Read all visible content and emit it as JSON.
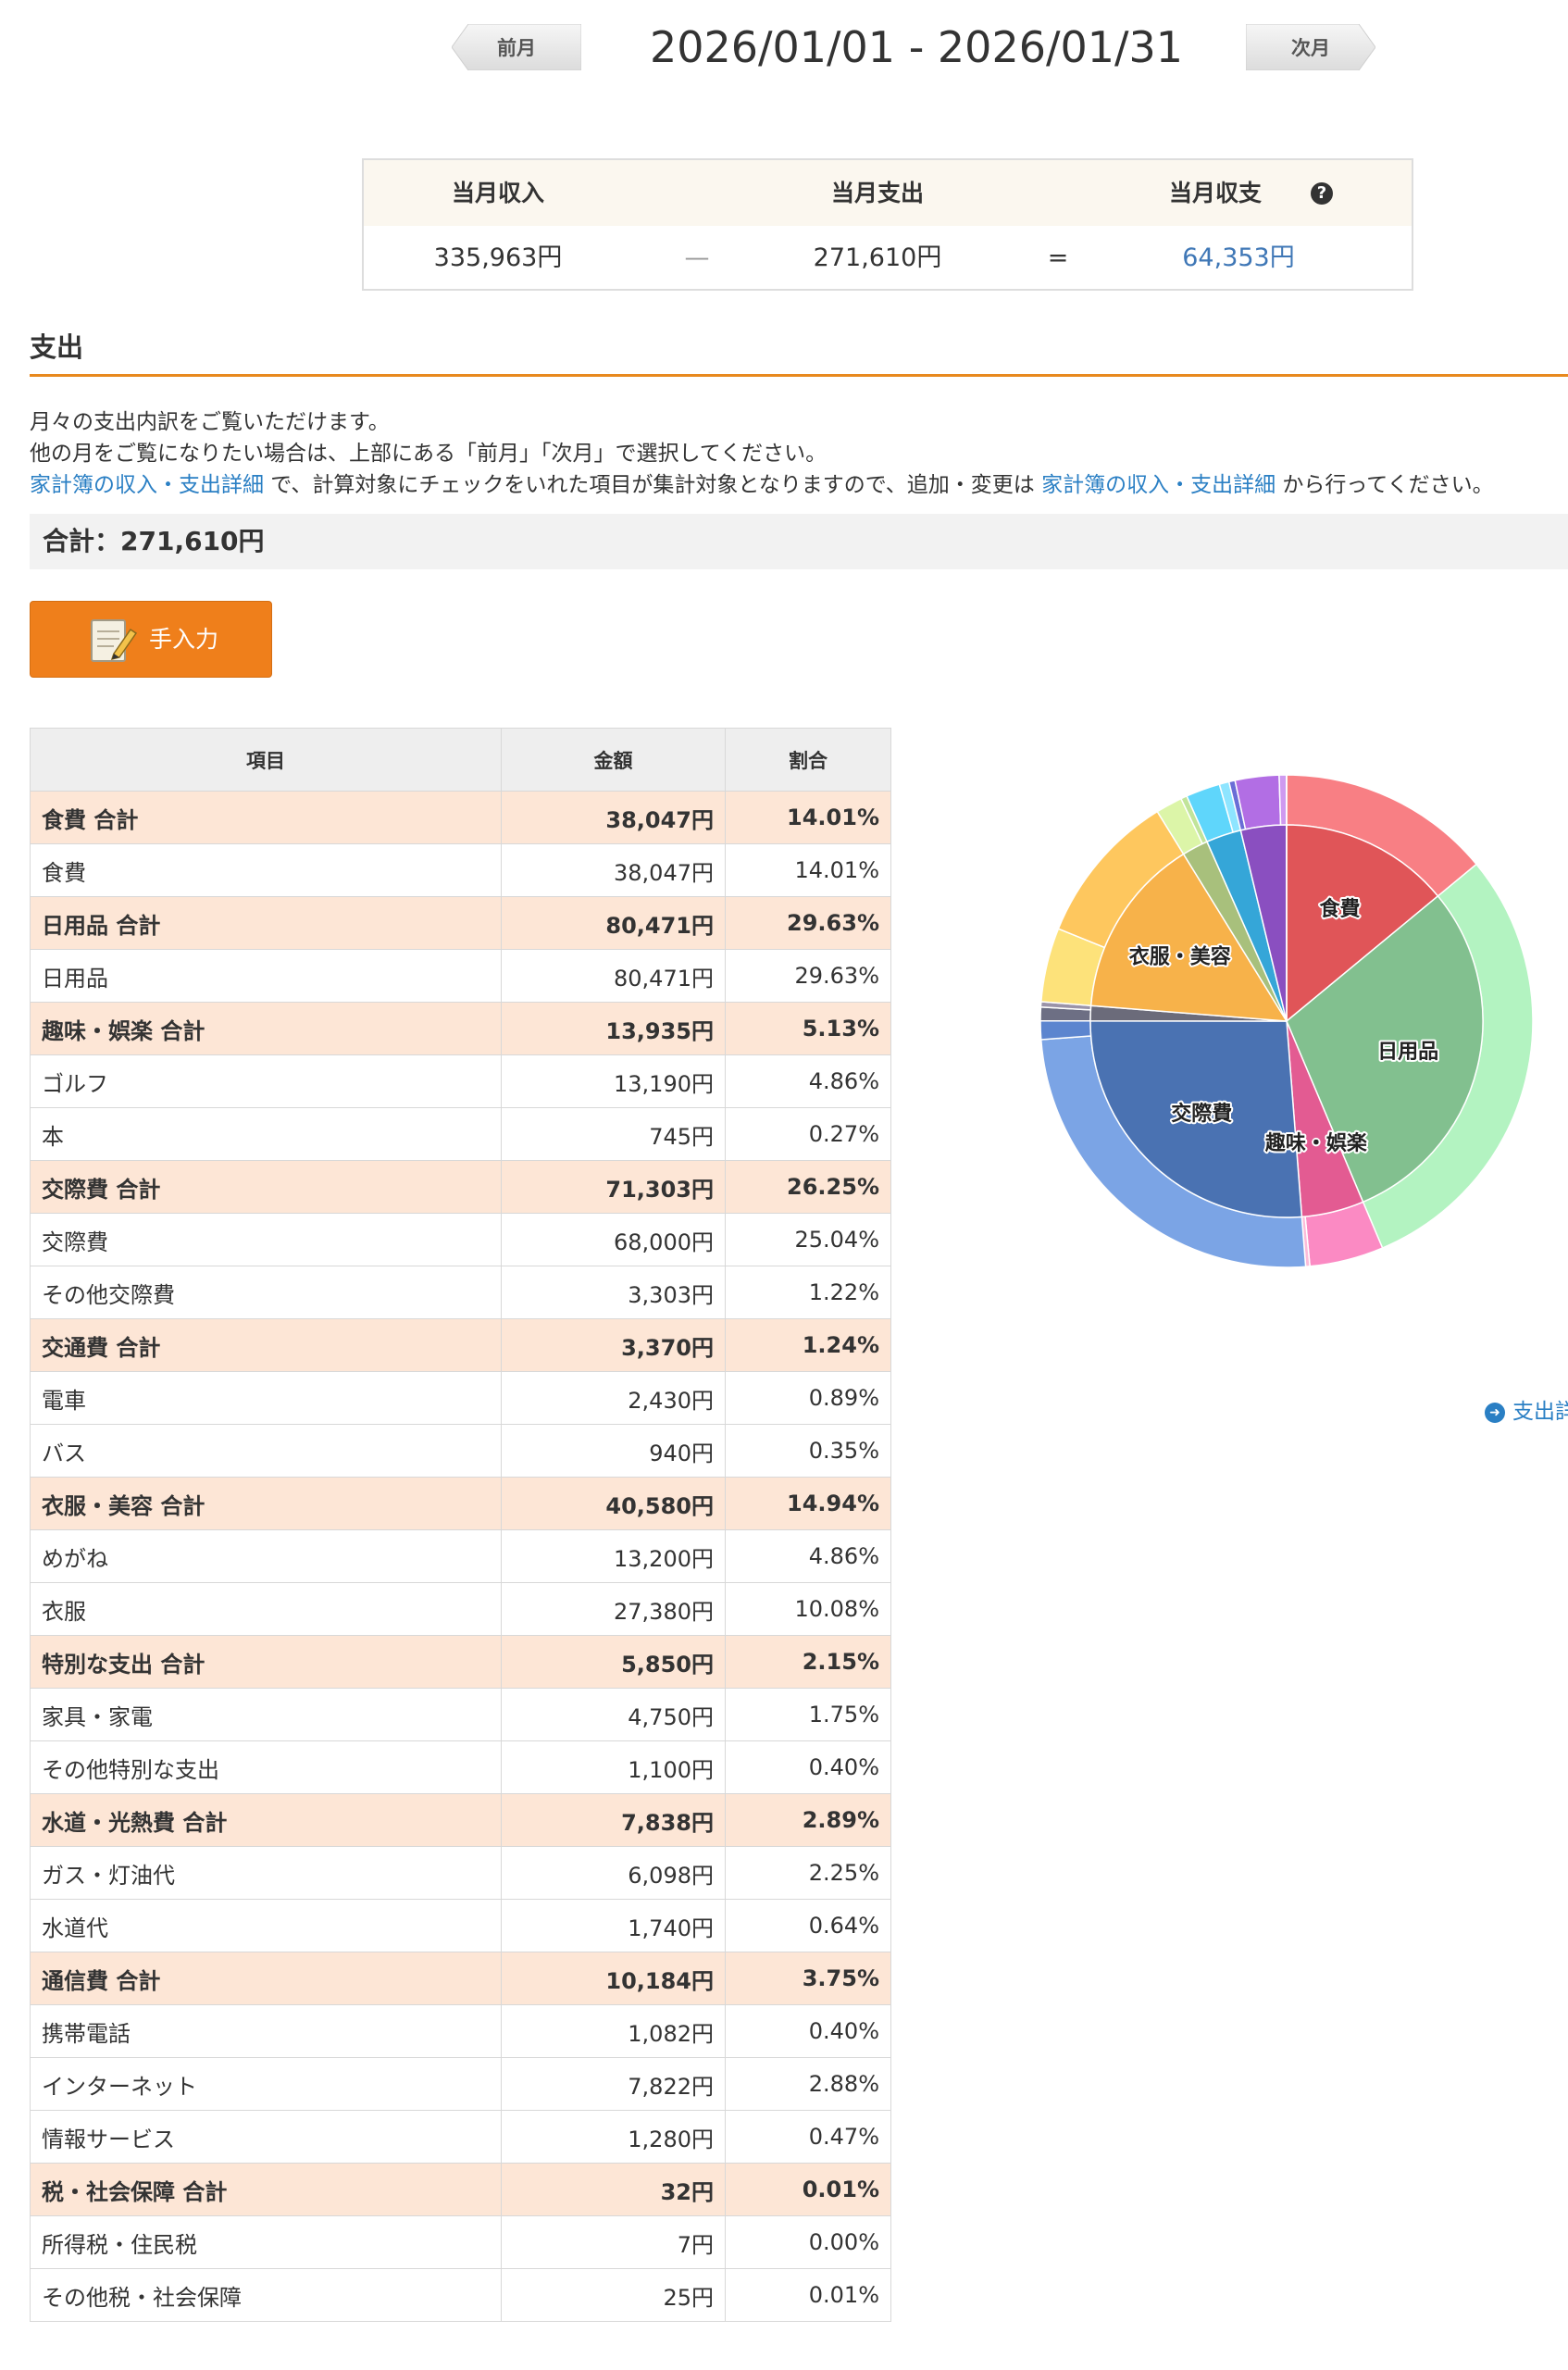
{
  "nav": {
    "prev_label": "前月",
    "next_label": "次月",
    "date_range": "2026/01/01 - 2026/01/31"
  },
  "summary": {
    "income_label": "当月収入",
    "expense_label": "当月支出",
    "balance_label": "当月収支",
    "income_value": "335,963円",
    "minus_sign": "—",
    "expense_value": "271,610円",
    "equals_sign": "=",
    "balance_value": "64,353円",
    "help_glyph": "?"
  },
  "section": {
    "title": "支出",
    "desc_line1": "月々の支出内訳をご覧いただけます。",
    "desc_line2": "他の月をご覧になりたい場合は、上部にある「前月」「次月」で選択してください。",
    "desc_link1": "家計簿の収入・支出詳細",
    "desc_mid": " で、計算対象にチェックをいれた項目が集計対象となりますので、追加・変更は ",
    "desc_link2": "家計簿の収入・支出詳細",
    "desc_end": " から行ってください。",
    "total": "合計：271,610円",
    "manual_button": "手入力",
    "detail_link": "支出詳"
  },
  "table": {
    "headers": [
      "項目",
      "金額",
      "割合"
    ],
    "rows": [
      {
        "name": "食費 合計",
        "amount": "38,047円",
        "pct": "14.01%",
        "group": true
      },
      {
        "name": "食費",
        "amount": "38,047円",
        "pct": "14.01%",
        "group": false
      },
      {
        "name": "日用品 合計",
        "amount": "80,471円",
        "pct": "29.63%",
        "group": true
      },
      {
        "name": "日用品",
        "amount": "80,471円",
        "pct": "29.63%",
        "group": false
      },
      {
        "name": "趣味・娯楽 合計",
        "amount": "13,935円",
        "pct": "5.13%",
        "group": true
      },
      {
        "name": "ゴルフ",
        "amount": "13,190円",
        "pct": "4.86%",
        "group": false
      },
      {
        "name": "本",
        "amount": "745円",
        "pct": "0.27%",
        "group": false
      },
      {
        "name": "交際費 合計",
        "amount": "71,303円",
        "pct": "26.25%",
        "group": true
      },
      {
        "name": "交際費",
        "amount": "68,000円",
        "pct": "25.04%",
        "group": false
      },
      {
        "name": "その他交際費",
        "amount": "3,303円",
        "pct": "1.22%",
        "group": false
      },
      {
        "name": "交通費 合計",
        "amount": "3,370円",
        "pct": "1.24%",
        "group": true
      },
      {
        "name": "電車",
        "amount": "2,430円",
        "pct": "0.89%",
        "group": false
      },
      {
        "name": "バス",
        "amount": "940円",
        "pct": "0.35%",
        "group": false
      },
      {
        "name": "衣服・美容 合計",
        "amount": "40,580円",
        "pct": "14.94%",
        "group": true
      },
      {
        "name": "めがね",
        "amount": "13,200円",
        "pct": "4.86%",
        "group": false
      },
      {
        "name": "衣服",
        "amount": "27,380円",
        "pct": "10.08%",
        "group": false
      },
      {
        "name": "特別な支出 合計",
        "amount": "5,850円",
        "pct": "2.15%",
        "group": true
      },
      {
        "name": "家具・家電",
        "amount": "4,750円",
        "pct": "1.75%",
        "group": false
      },
      {
        "name": "その他特別な支出",
        "amount": "1,100円",
        "pct": "0.40%",
        "group": false
      },
      {
        "name": "水道・光熱費 合計",
        "amount": "7,838円",
        "pct": "2.89%",
        "group": true
      },
      {
        "name": "ガス・灯油代",
        "amount": "6,098円",
        "pct": "2.25%",
        "group": false
      },
      {
        "name": "水道代",
        "amount": "1,740円",
        "pct": "0.64%",
        "group": false
      },
      {
        "name": "通信費 合計",
        "amount": "10,184円",
        "pct": "3.75%",
        "group": true
      },
      {
        "name": "携帯電話",
        "amount": "1,082円",
        "pct": "0.40%",
        "group": false
      },
      {
        "name": "インターネット",
        "amount": "7,822円",
        "pct": "2.88%",
        "group": false
      },
      {
        "name": "情報サービス",
        "amount": "1,280円",
        "pct": "0.47%",
        "group": false
      },
      {
        "name": "税・社会保障 合計",
        "amount": "32円",
        "pct": "0.01%",
        "group": true
      },
      {
        "name": "所得税・住民税",
        "amount": "7円",
        "pct": "0.00%",
        "group": false
      },
      {
        "name": "その他税・社会保障",
        "amount": "25円",
        "pct": "0.01%",
        "group": false
      }
    ]
  },
  "colors": {
    "accent": "#ef7f1b",
    "link": "#2a7fc4",
    "group_row": "#fde6d6"
  },
  "chart_data": {
    "type": "pie",
    "title": "",
    "inner": [
      {
        "name": "食費",
        "value": 38047,
        "color": "#e05558",
        "label": true
      },
      {
        "name": "日用品",
        "value": 80471,
        "color": "#82c08f",
        "label": true
      },
      {
        "name": "趣味・娯楽",
        "value": 13935,
        "color": "#e35b92",
        "label": true
      },
      {
        "name": "交際費",
        "value": 71303,
        "color": "#4a72b2",
        "label": true
      },
      {
        "name": "交通費",
        "value": 3370,
        "color": "#6b6b7a",
        "label": false
      },
      {
        "name": "衣服・美容",
        "value": 40580,
        "color": "#f7b24a",
        "label": true
      },
      {
        "name": "特別な支出",
        "value": 5850,
        "color": "#a8c07c",
        "label": false
      },
      {
        "name": "水道・光熱費",
        "value": 7838,
        "color": "#35a6d8",
        "label": false
      },
      {
        "name": "通信費",
        "value": 10184,
        "color": "#8a4fc0",
        "label": false
      },
      {
        "name": "税・社会保障",
        "value": 32,
        "color": "#999999",
        "label": false
      }
    ],
    "outer": [
      {
        "name": "食費",
        "value": 38047,
        "color": "#f87f84"
      },
      {
        "name": "日用品",
        "value": 80471,
        "color": "#b3f3c1"
      },
      {
        "name": "ゴルフ",
        "value": 13190,
        "color": "#fb8ac3"
      },
      {
        "name": "本",
        "value": 745,
        "color": "#fcbcd9"
      },
      {
        "name": "交際費",
        "value": 68000,
        "color": "#7ba4e5"
      },
      {
        "name": "その他交際費",
        "value": 3303,
        "color": "#5c85cf"
      },
      {
        "name": "電車",
        "value": 2430,
        "color": "#6d6f84"
      },
      {
        "name": "バス",
        "value": 940,
        "color": "#9a93a8"
      },
      {
        "name": "めがね",
        "value": 13200,
        "color": "#fde27a"
      },
      {
        "name": "衣服",
        "value": 27380,
        "color": "#fec75e"
      },
      {
        "name": "家具・家電",
        "value": 4750,
        "color": "#dcf5a8"
      },
      {
        "name": "その他特別な支出",
        "value": 1100,
        "color": "#c1e49a"
      },
      {
        "name": "ガス・灯油代",
        "value": 6098,
        "color": "#5fd6fb"
      },
      {
        "name": "水道代",
        "value": 1740,
        "color": "#8ee5ff"
      },
      {
        "name": "携帯電話",
        "value": 1082,
        "color": "#6a6dd6"
      },
      {
        "name": "インターネット",
        "value": 7822,
        "color": "#b26ee4"
      },
      {
        "name": "情報サービス",
        "value": 1280,
        "color": "#cf9af0"
      },
      {
        "name": "所得税・住民税",
        "value": 7,
        "color": "#bbbbbb"
      },
      {
        "name": "その他税・社会保障",
        "value": 25,
        "color": "#aaaaaa"
      }
    ]
  }
}
